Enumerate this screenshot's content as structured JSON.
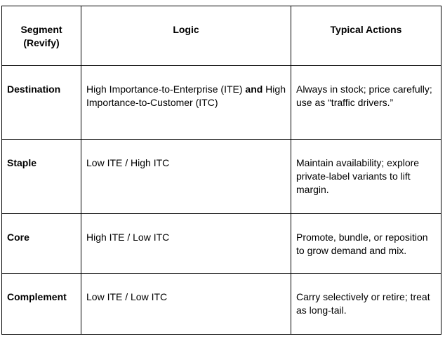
{
  "table": {
    "headers": {
      "segment_line1": "Segment",
      "segment_line2": "(Revify)",
      "logic": "Logic",
      "actions": "Typical Actions"
    },
    "rows": [
      {
        "segment": "Destination",
        "logic_pre": "High Importance-to-Enterprise (ITE) ",
        "logic_bold": "and",
        "logic_post": " High Importance-to-Customer (ITC)",
        "actions": "Always in stock; price carefully; use as “traffic drivers.”"
      },
      {
        "segment": "Staple",
        "logic": "Low ITE / High ITC",
        "actions": "Maintain availability; explore private-label variants to lift margin."
      },
      {
        "segment": "Core",
        "logic": "High ITE / Low ITC",
        "actions": "Promote, bundle, or reposition to grow demand and mix."
      },
      {
        "segment": "Complement",
        "logic": "Low ITE / Low ITC",
        "actions": "Carry selectively or retire; treat as long-tail."
      }
    ]
  }
}
